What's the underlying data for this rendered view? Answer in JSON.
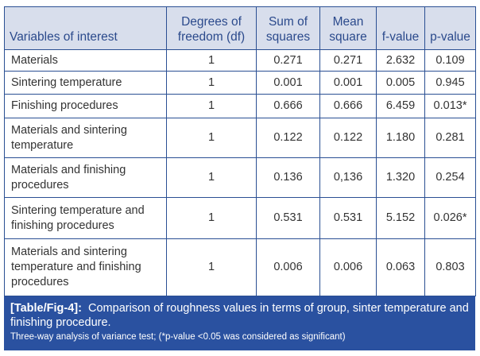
{
  "table": {
    "headers": [
      "Variables of interest",
      "Degrees of freedom (df)",
      "Sum of squares",
      "Mean square",
      "f-value",
      "p-value"
    ],
    "rows": [
      [
        "Materials",
        "1",
        "0.271",
        "0.271",
        "2.632",
        "0.109"
      ],
      [
        "Sintering temperature",
        "1",
        "0.001",
        "0.001",
        "0.005",
        "0.945"
      ],
      [
        "Finishing procedures",
        "1",
        "0.666",
        "0.666",
        "6.459",
        "0.013*"
      ],
      [
        "Materials and sintering temperature",
        "1",
        "0.122",
        "0.122",
        "1.180",
        "0.281"
      ],
      [
        "Materials and finishing procedures",
        "1",
        "0.136",
        "0,136",
        "1.320",
        "0.254"
      ],
      [
        "Sintering temperature and finishing procedures",
        "1",
        "0.531",
        "0.531",
        "5.152",
        "0.026*"
      ],
      [
        "Materials and sintering temperature and finishing procedures",
        "1",
        "0.006",
        "0.006",
        "0.063",
        "0.803"
      ]
    ]
  },
  "caption": {
    "label": "[Table/Fig-4]:",
    "text": "Comparison of roughness values in terms of group, sinter temperature and finishing procedure.",
    "note": "Three-way analysis of variance test; (*p-value <0.05 was considered as significant)"
  }
}
